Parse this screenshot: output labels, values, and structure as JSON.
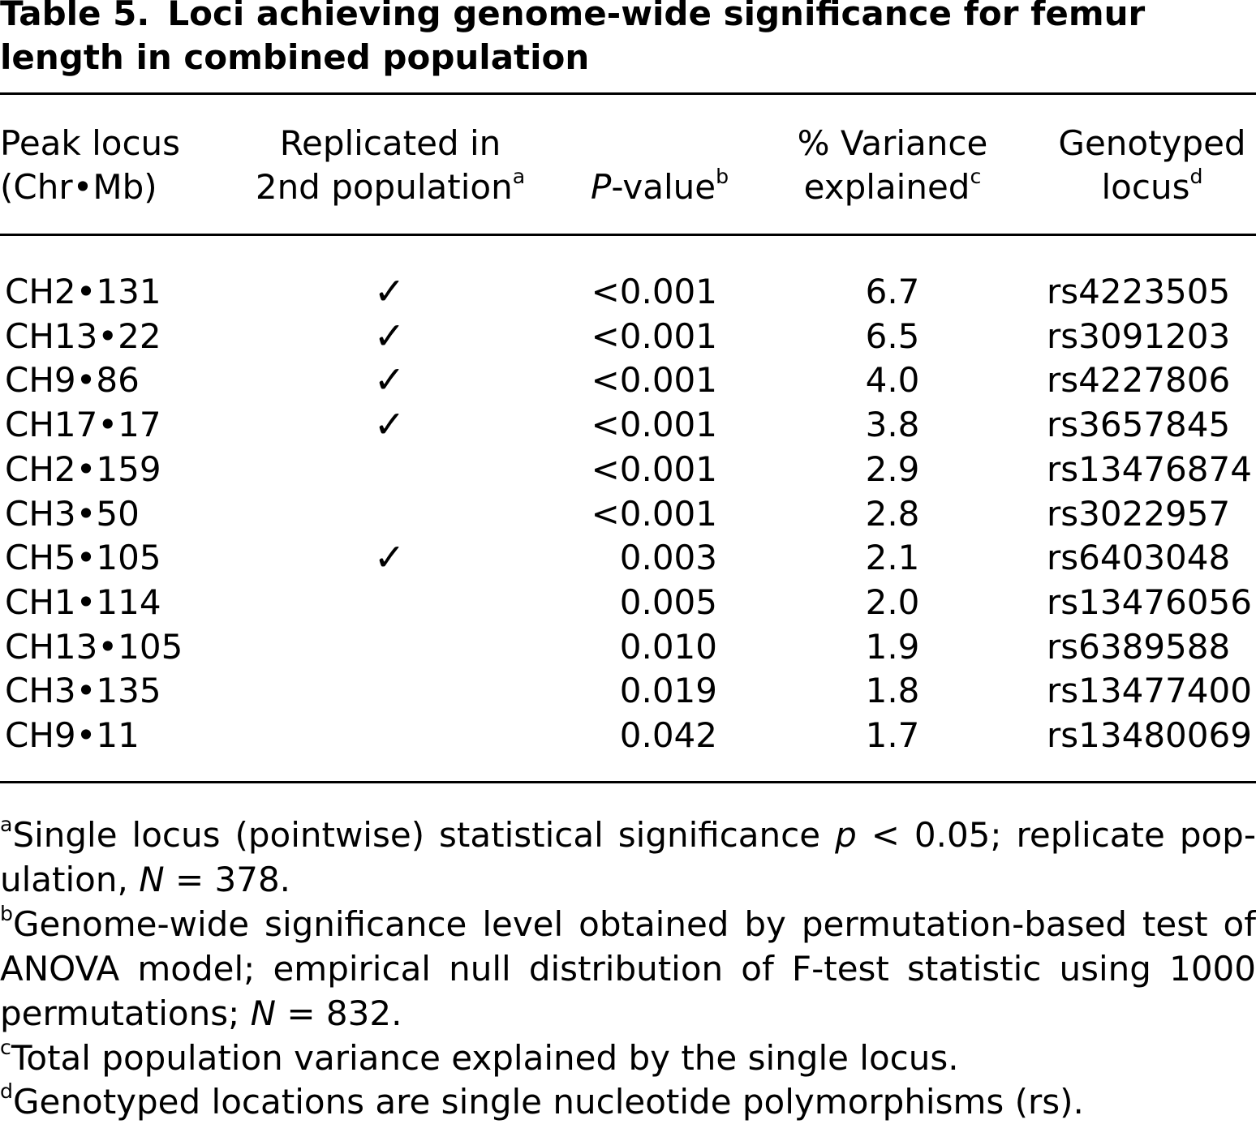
{
  "caption": {
    "label": "Table 5.",
    "title": "Loci achieving genome-wide significance for femur length in combined population"
  },
  "headers": {
    "peak_locus_line1": "Peak locus",
    "peak_locus_line2": "(Chr•Mb)",
    "replicated_line1": "Replicated in",
    "replicated_line2": "2nd population",
    "replicated_sup": "a",
    "pvalue_italic": "P",
    "pvalue_rest": "-value",
    "pvalue_sup": "b",
    "variance_line1": "% Variance",
    "variance_line2": "explained",
    "variance_sup": "c",
    "genotyped_line1": "Genotyped",
    "genotyped_line2": "locus",
    "genotyped_sup": "d"
  },
  "rows": [
    {
      "locus": "CH2•131",
      "replicated": "✓",
      "pvalue": "<0.001",
      "variance": "6.7",
      "genotyped": "rs4223505"
    },
    {
      "locus": "CH13•22",
      "replicated": "✓",
      "pvalue": "<0.001",
      "variance": "6.5",
      "genotyped": "rs3091203"
    },
    {
      "locus": "CH9•86",
      "replicated": "✓",
      "pvalue": "<0.001",
      "variance": "4.0",
      "genotyped": "rs4227806"
    },
    {
      "locus": "CH17•17",
      "replicated": "✓",
      "pvalue": "<0.001",
      "variance": "3.8",
      "genotyped": "rs3657845"
    },
    {
      "locus": "CH2•159",
      "replicated": "",
      "pvalue": "<0.001",
      "variance": "2.9",
      "genotyped": "rs13476874"
    },
    {
      "locus": "CH3•50",
      "replicated": "",
      "pvalue": "<0.001",
      "variance": "2.8",
      "genotyped": "rs3022957"
    },
    {
      "locus": "CH5•105",
      "replicated": "✓",
      "pvalue": "0.003",
      "variance": "2.1",
      "genotyped": "rs6403048"
    },
    {
      "locus": "CH1•114",
      "replicated": "",
      "pvalue": "0.005",
      "variance": "2.0",
      "genotyped": "rs13476056"
    },
    {
      "locus": "CH13•105",
      "replicated": "",
      "pvalue": "0.010",
      "variance": "1.9",
      "genotyped": "rs6389588"
    },
    {
      "locus": "CH3•135",
      "replicated": "",
      "pvalue": "0.019",
      "variance": "1.8",
      "genotyped": "rs13477400"
    },
    {
      "locus": "CH9•11",
      "replicated": "",
      "pvalue": "0.042",
      "variance": "1.7",
      "genotyped": "rs13480069"
    }
  ],
  "footnotes": {
    "a_mark": "a",
    "a_text1": "Single locus (pointwise) statistical significance ",
    "a_p": "p",
    "a_text2": " < 0.05; replicate pop-ulation, ",
    "a_n": "N",
    "a_text3": " = 378.",
    "b_mark": "b",
    "b_text1": "Genome-wide significance level obtained by permutation-based test of ANOVA model; empirical null distribution of F-test statistic using 1000 permutations; ",
    "b_n": "N",
    "b_text2": " = 832.",
    "c_mark": "c",
    "c_text": "Total population variance explained by the single locus.",
    "d_mark": "d",
    "d_text": "Genotyped locations are single nucleotide polymorphisms (rs)."
  }
}
